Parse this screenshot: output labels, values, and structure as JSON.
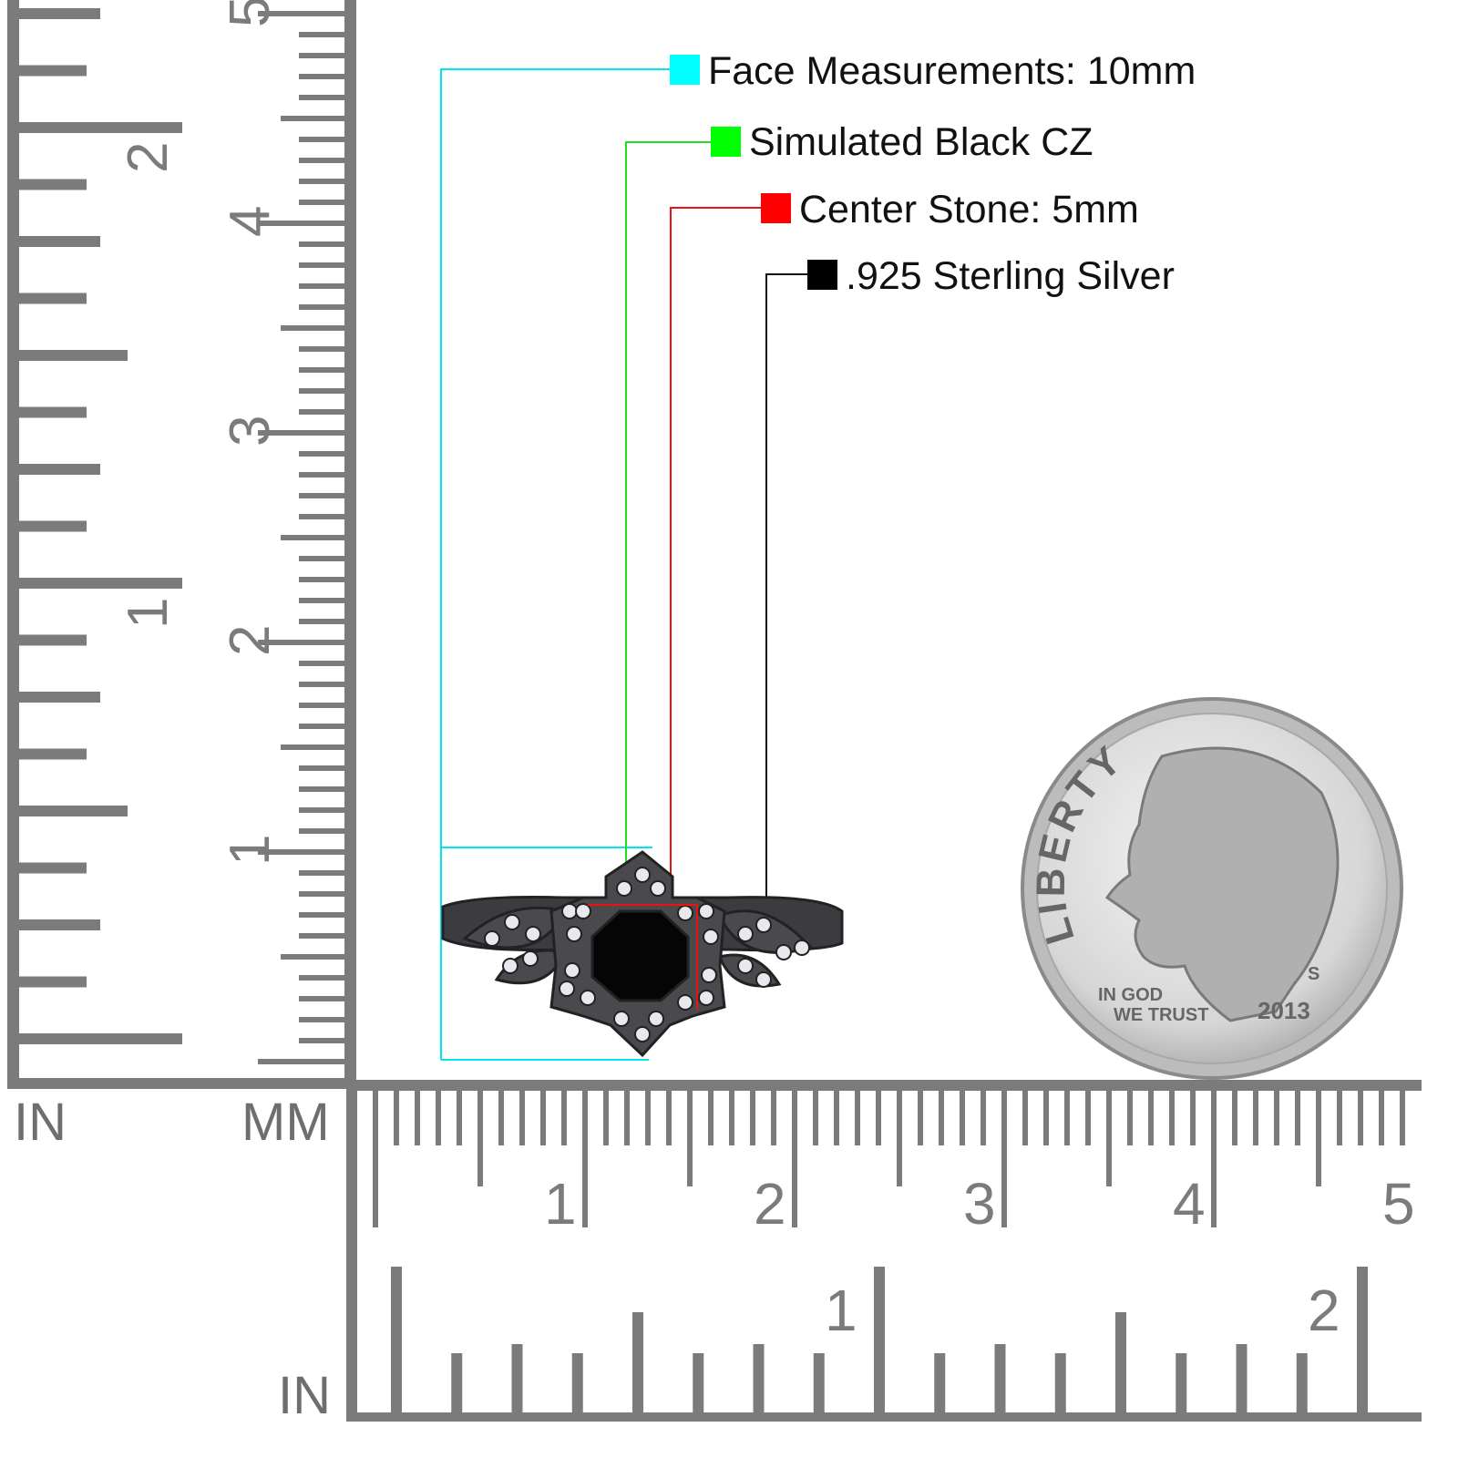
{
  "legend": {
    "items": [
      {
        "label": "Face Measurements: 10mm",
        "color": "#00ffff"
      },
      {
        "label": "Simulated Black CZ",
        "color": "#00ff00"
      },
      {
        "label": "Center Stone: 5mm",
        "color": "#ff0000"
      },
      {
        "label": ".925 Sterling Silver",
        "color": "#000000"
      }
    ]
  },
  "ruler": {
    "color": "#7b7b7b",
    "unit_in_left": "IN",
    "unit_mm": "MM",
    "unit_in_bottom": "IN",
    "vertical_cm_labels": [
      "1",
      "2",
      "3",
      "4",
      "5"
    ],
    "vertical_in_labels": [
      "1",
      "2"
    ],
    "horizontal_cm_labels": [
      "1",
      "2",
      "3",
      "4",
      "5"
    ],
    "horizontal_in_labels": [
      "1",
      "2"
    ]
  },
  "coin": {
    "motto_top": "LIBERTY",
    "motto_bottom_1": "IN GOD",
    "motto_bottom_2": "WE TRUST",
    "year": "2013",
    "mint_mark": "S"
  },
  "ring": {
    "metal_color": "#3c3c40",
    "stone_color": "#050505"
  }
}
